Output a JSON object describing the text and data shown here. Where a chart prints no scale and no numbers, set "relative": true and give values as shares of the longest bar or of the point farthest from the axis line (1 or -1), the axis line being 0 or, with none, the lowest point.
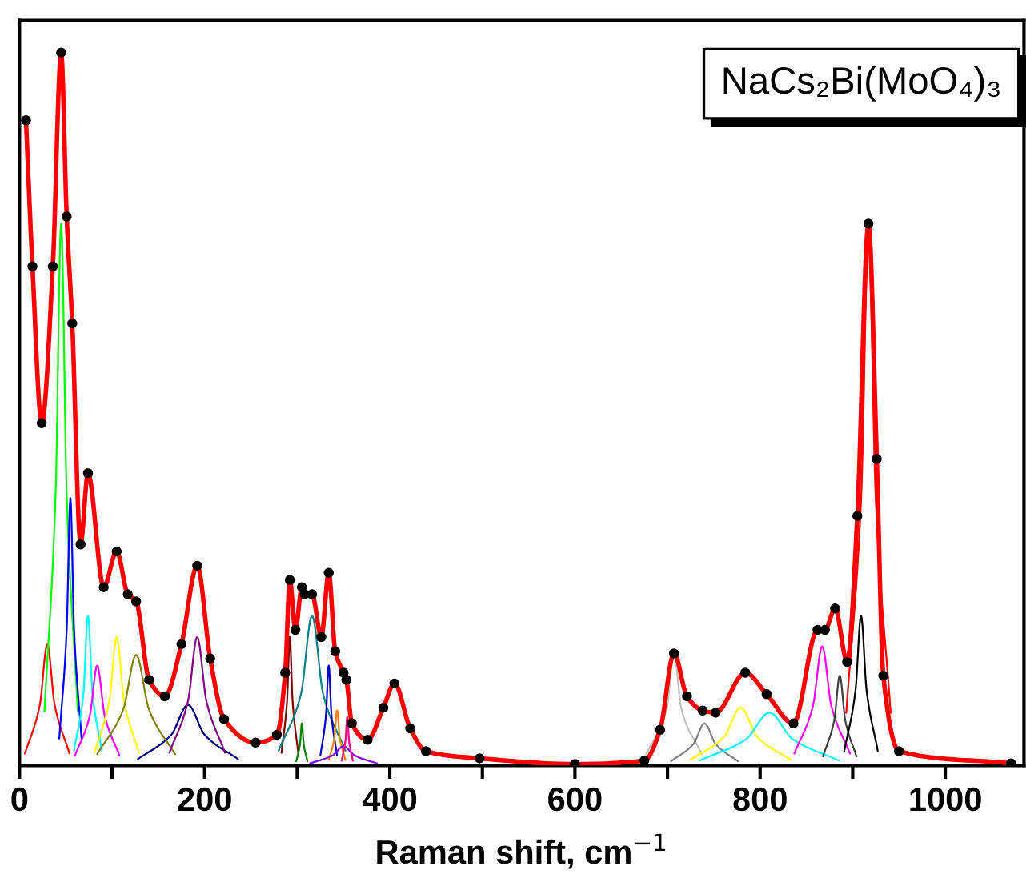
{
  "chart_data": {
    "type": "line",
    "relative": true,
    "xlabel": "Raman shift, cm$^{−1}$",
    "xlim": [
      0,
      1085
    ],
    "xticks": [
      0,
      {
        "value": 100,
        "label": null
      },
      200,
      {
        "value": 300,
        "label": null
      },
      400,
      {
        "value": 500,
        "label": null
      },
      600,
      {
        "value": 700,
        "label": null
      },
      800,
      {
        "value": 900,
        "label": null
      },
      1000
    ],
    "grid": false,
    "legend": false,
    "tick_labels": "x",
    "annotations": [
      "NaCs₂Bi(MoO₄)₃"
    ],
    "series": [
      {
        "color": "#ff0000",
        "x": [
          7,
          14,
          24,
          36,
          45,
          51,
          57,
          66,
          74,
          91,
          105,
          117,
          126,
          140,
          157,
          175,
          192,
          206,
          221,
          255,
          278,
          287,
          292,
          298,
          305,
          308,
          316,
          326,
          334,
          341,
          350,
          353,
          359,
          376,
          393,
          405,
          422,
          439,
          497,
          600,
          675,
          692,
          707,
          721,
          738,
          752,
          784,
          807,
          836,
          862,
          870,
          881,
          894,
          905,
          917,
          926,
          933,
          950,
          1071
        ],
        "values": [
          0.905,
          0.7,
          0.48,
          0.7,
          1.0,
          0.77,
          0.62,
          0.31,
          0.41,
          0.25,
          0.3,
          0.24,
          0.23,
          0.12,
          0.097,
          0.17,
          0.28,
          0.15,
          0.065,
          0.032,
          0.043,
          0.13,
          0.26,
          0.19,
          0.25,
          0.24,
          0.24,
          0.18,
          0.27,
          0.16,
          0.13,
          0.12,
          0.059,
          0.036,
          0.081,
          0.115,
          0.052,
          0.02,
          0.01,
          0.002,
          0.007,
          0.05,
          0.157,
          0.097,
          0.077,
          0.074,
          0.13,
          0.1,
          0.059,
          0.19,
          0.19,
          0.22,
          0.145,
          0.35,
          0.76,
          0.43,
          0.126,
          0.02,
          0.003
        ]
      },
      {
        "type": "scatter",
        "marker": "circle",
        "color": "#000000",
        "x": [
          7,
          14,
          24,
          36,
          45,
          51,
          57,
          66,
          74,
          91,
          105,
          117,
          126,
          140,
          157,
          175,
          192,
          206,
          221,
          255,
          278,
          287,
          292,
          298,
          305,
          308,
          316,
          326,
          334,
          341,
          350,
          353,
          359,
          376,
          393,
          405,
          422,
          439,
          497,
          600,
          675,
          692,
          707,
          721,
          738,
          752,
          784,
          807,
          836,
          862,
          870,
          881,
          894,
          905,
          917,
          926,
          933,
          950,
          1071
        ],
        "values": [
          0.905,
          0.7,
          0.48,
          0.7,
          1.0,
          0.77,
          0.62,
          0.31,
          0.41,
          0.25,
          0.3,
          0.24,
          0.23,
          0.12,
          0.097,
          0.17,
          0.28,
          0.15,
          0.065,
          0.032,
          0.043,
          0.13,
          0.26,
          0.19,
          0.25,
          0.24,
          0.24,
          0.18,
          0.27,
          0.16,
          0.13,
          0.12,
          0.059,
          0.036,
          0.081,
          0.115,
          0.052,
          0.02,
          0.01,
          0.002,
          0.007,
          0.05,
          0.157,
          0.097,
          0.077,
          0.074,
          0.13,
          0.1,
          0.059,
          0.19,
          0.19,
          0.22,
          0.145,
          0.35,
          0.76,
          0.43,
          0.126,
          0.02,
          0.003
        ]
      },
      {
        "color": "#ff0000",
        "x": [
          6,
          22,
          30,
          38,
          54
        ],
        "values": [
          0.017,
          0.085,
          0.17,
          0.085,
          0.017
        ]
      },
      {
        "color": "#00ff00",
        "x": [
          27,
          39,
          45,
          51,
          63
        ],
        "values": [
          0.076,
          0.38,
          0.76,
          0.38,
          0.076
        ]
      },
      {
        "color": "#0000ff",
        "x": [
          43,
          51,
          55,
          59,
          67
        ],
        "values": [
          0.038,
          0.19,
          0.375,
          0.19,
          0.038
        ]
      },
      {
        "color": "#00ffff",
        "x": [
          59,
          69,
          74,
          79,
          89
        ],
        "values": [
          0.021,
          0.1,
          0.21,
          0.1,
          0.021
        ]
      },
      {
        "color": "#ff00ff",
        "x": [
          60,
          76,
          84,
          92,
          108
        ],
        "values": [
          0.014,
          0.07,
          0.14,
          0.07,
          0.014
        ]
      },
      {
        "color": "#ffff00",
        "x": [
          81,
          97,
          105,
          113,
          129
        ],
        "values": [
          0.018,
          0.09,
          0.18,
          0.09,
          0.018
        ]
      },
      {
        "color": "#808000",
        "x": [
          84,
          112,
          126,
          140,
          168
        ],
        "values": [
          0.016,
          0.078,
          0.155,
          0.078,
          0.016
        ]
      },
      {
        "color": "#000080",
        "x": [
          128,
          164,
          182,
          200,
          236
        ],
        "values": [
          0.009,
          0.043,
          0.085,
          0.043,
          0.009
        ]
      },
      {
        "color": "#800080",
        "x": [
          162,
          182,
          192,
          202,
          222
        ],
        "values": [
          0.018,
          0.09,
          0.18,
          0.09,
          0.018
        ]
      },
      {
        "color": "#800000",
        "x": [
          283,
          289,
          292,
          295,
          301
        ],
        "values": [
          0.018,
          0.09,
          0.18,
          0.09,
          0.018
        ]
      },
      {
        "color": "#008000",
        "x": [
          299,
          303,
          305,
          307,
          311
        ],
        "values": [
          0.006,
          0.03,
          0.059,
          0.03,
          0.006
        ]
      },
      {
        "color": "#008080",
        "x": [
          280,
          304,
          316,
          328,
          352
        ],
        "values": [
          0.021,
          0.1,
          0.21,
          0.1,
          0.021
        ]
      },
      {
        "color": "#0000cd",
        "x": [
          325,
          331,
          334,
          337,
          343
        ],
        "values": [
          0.014,
          0.07,
          0.14,
          0.07,
          0.014
        ]
      },
      {
        "color": "#ff8000",
        "x": [
          334,
          340,
          343,
          346,
          352
        ],
        "values": [
          0.008,
          0.038,
          0.077,
          0.038,
          0.008
        ]
      },
      {
        "color": "#8000ff",
        "x": [
          314,
          338,
          350,
          362,
          386
        ],
        "values": [
          0.003,
          0.014,
          0.027,
          0.014,
          0.003
        ]
      },
      {
        "color": "#ff0080",
        "x": [
          348,
          352,
          354,
          356,
          360
        ],
        "values": [
          0.007,
          0.034,
          0.068,
          0.034,
          0.007
        ]
      },
      {
        "color": "#c0c0c0",
        "x": [
          677,
          699,
          707,
          715,
          737
        ],
        "values": [
          0.016,
          0.079,
          0.157,
          0.079,
          0.016
        ]
      },
      {
        "color": "#808080",
        "x": [
          704,
          728,
          740,
          752,
          776
        ],
        "values": [
          0.006,
          0.03,
          0.059,
          0.03,
          0.006
        ]
      },
      {
        "color": "#ffff00",
        "x": [
          725,
          761,
          779,
          797,
          833
        ],
        "values": [
          0.008,
          0.04,
          0.081,
          0.04,
          0.008
        ]
      },
      {
        "color": "#00ffff",
        "x": [
          735,
          785,
          810,
          835,
          885
        ],
        "values": [
          0.007,
          0.037,
          0.074,
          0.037,
          0.007
        ]
      },
      {
        "color": "#ff00ff",
        "x": [
          837,
          857,
          867,
          877,
          897
        ],
        "values": [
          0.017,
          0.083,
          0.167,
          0.083,
          0.017
        ]
      },
      {
        "color": "#404040",
        "x": [
          868,
          880,
          886,
          892,
          904
        ],
        "values": [
          0.013,
          0.063,
          0.126,
          0.063,
          0.013
        ]
      },
      {
        "color": "#000000",
        "x": [
          891,
          903,
          909,
          915,
          927
        ],
        "values": [
          0.021,
          0.105,
          0.21,
          0.105,
          0.021
        ]
      },
      {
        "color": "#ff0000",
        "x": [
          893,
          909,
          917,
          925,
          941
        ],
        "values": [
          0.074,
          0.37,
          0.74,
          0.37,
          0.074
        ]
      }
    ]
  }
}
